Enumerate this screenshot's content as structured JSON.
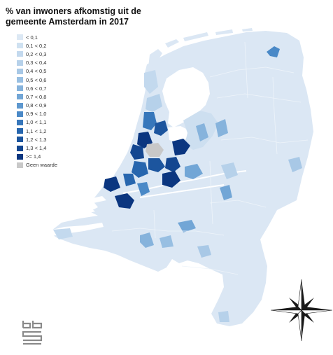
{
  "title_lines": [
    "% van inwoners afkomstig uit de",
    "gemeente Amsterdam in 2017"
  ],
  "legend": [
    {
      "label": "< 0,1",
      "color": "#dce8f4"
    },
    {
      "label": "0,1 < 0,2",
      "color": "#cfe1f1"
    },
    {
      "label": "0,2 < 0,3",
      "color": "#c3d9ee"
    },
    {
      "label": "0,3 < 0,4",
      "color": "#b6d1ea"
    },
    {
      "label": "0,4 < 0,5",
      "color": "#a8c8e6"
    },
    {
      "label": "0,5 < 0,6",
      "color": "#98bfe2"
    },
    {
      "label": "0,6 < 0,7",
      "color": "#86b3dc"
    },
    {
      "label": "0,7 < 0,8",
      "color": "#72a6d6"
    },
    {
      "label": "0,8 < 0,9",
      "color": "#5e98cf"
    },
    {
      "label": "0,9 < 1,0",
      "color": "#4a89c7"
    },
    {
      "label": "1,0 < 1,1",
      "color": "#3777bb"
    },
    {
      "label": "1,1 < 1,2",
      "color": "#2766ae"
    },
    {
      "label": "1,2 < 1,3",
      "color": "#1c559e"
    },
    {
      "label": "1,3 < 1,4",
      "color": "#134690"
    },
    {
      "label": ">= 1,4",
      "color": "#0b3680"
    },
    {
      "label": "Geen waarde",
      "color": "#c8c8c8"
    }
  ],
  "colors": {
    "land": "#d9e6f3",
    "water": "#ffffff",
    "border": "#eef4fa",
    "compass": "#1a1a1a"
  },
  "icons": {
    "compass": "compass-rose-icon",
    "logo": "cbs-logo-icon"
  }
}
